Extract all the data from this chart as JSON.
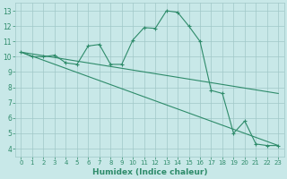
{
  "line1_x": [
    0,
    1,
    2,
    3,
    4,
    5,
    6,
    7,
    8,
    9,
    10,
    11,
    12,
    13,
    14,
    15,
    16,
    17,
    18,
    19,
    20,
    21,
    22,
    23
  ],
  "line1_y": [
    10.3,
    10.0,
    10.0,
    10.1,
    9.6,
    9.5,
    10.7,
    10.8,
    9.5,
    9.5,
    11.1,
    11.9,
    11.85,
    13.0,
    12.9,
    12.0,
    11.0,
    7.8,
    7.6,
    5.0,
    5.8,
    4.3,
    4.2,
    4.2
  ],
  "line2_x": [
    0,
    23
  ],
  "line2_y": [
    10.3,
    7.6
  ],
  "line3_x": [
    0,
    23
  ],
  "line3_y": [
    10.3,
    4.2
  ],
  "line_color": "#2E8B6A",
  "bg_color": "#C8E8E8",
  "grid_color": "#A0C8C8",
  "xlabel": "Humidex (Indice chaleur)",
  "xlim": [
    -0.5,
    23.5
  ],
  "ylim": [
    3.5,
    13.5
  ],
  "xticks": [
    0,
    1,
    2,
    3,
    4,
    5,
    6,
    7,
    8,
    9,
    10,
    11,
    12,
    13,
    14,
    15,
    16,
    17,
    18,
    19,
    20,
    21,
    22,
    23
  ],
  "yticks": [
    4,
    5,
    6,
    7,
    8,
    9,
    10,
    11,
    12,
    13
  ],
  "label_fontsize": 6.5,
  "tick_fontsize": 5.5
}
